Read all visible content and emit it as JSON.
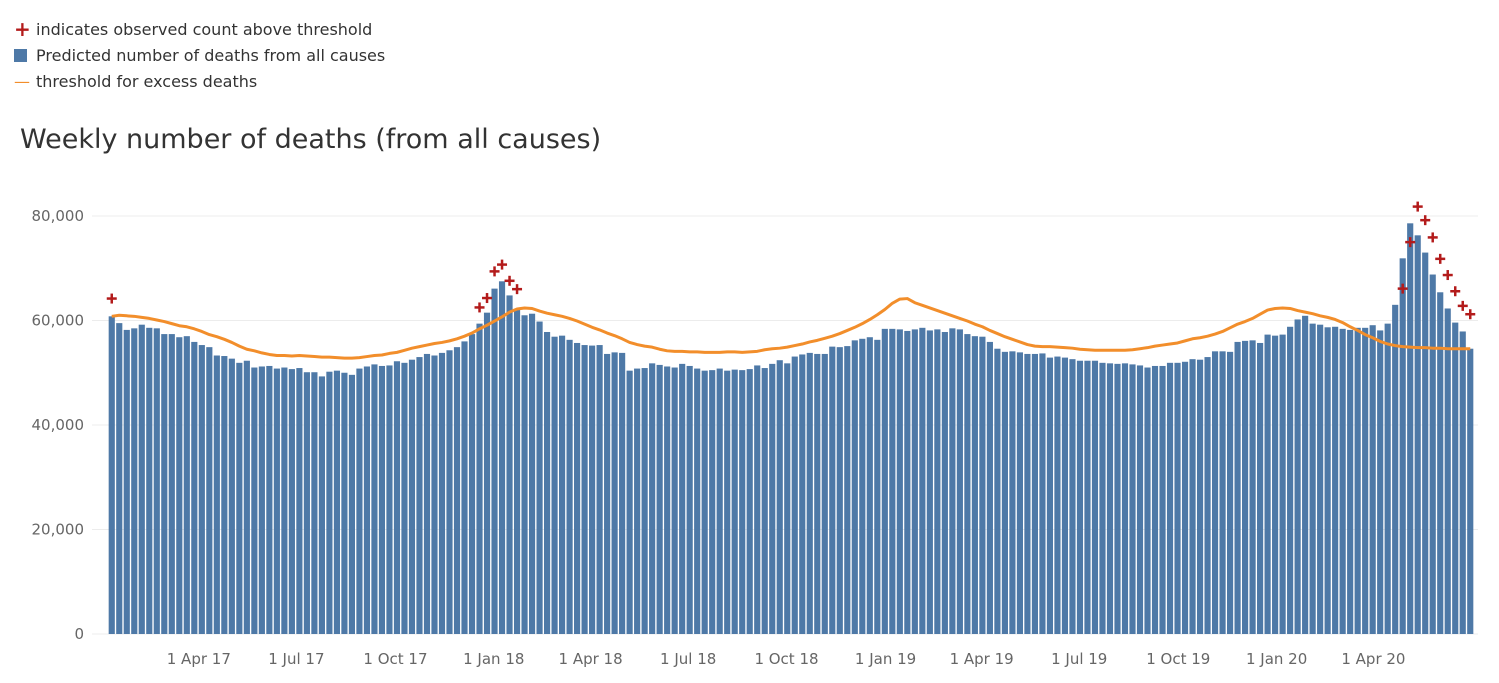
{
  "legend": {
    "marker_label": "indicates observed count above threshold",
    "bar_label": "Predicted number of deaths from all causes",
    "line_label": "threshold for excess deaths",
    "marker_symbol": "+",
    "line_symbol": "—"
  },
  "colors": {
    "bar": "#4e79a7",
    "threshold": "#f28e2b",
    "marker": "#b31b1b",
    "grid": "#ececec",
    "axis_text": "#666666"
  },
  "chart_data": {
    "type": "bar",
    "title": "Weekly number of deaths (from all causes)",
    "xlabel": "",
    "ylabel": "",
    "ylim": [
      0,
      80000
    ],
    "y_ticks": [
      0,
      20000,
      40000,
      60000,
      80000
    ],
    "y_tick_labels": [
      "0",
      "20,000",
      "40,000",
      "60,000",
      "80,000"
    ],
    "x_tick_labels": [
      "1 Apr 17",
      "1 Jul 17",
      "1 Oct 17",
      "1 Jan 18",
      "1 Apr 18",
      "1 Jul 18",
      "1 Oct 18",
      "1 Jan 19",
      "1 Apr 19",
      "1 Jul 19",
      "1 Oct 19",
      "1 Jan 20",
      "1 Apr 20"
    ],
    "x_tick_weeks": [
      12.1,
      25.1,
      38.3,
      51.4,
      64.3,
      77.3,
      90.4,
      103.6,
      116.4,
      129.4,
      142.6,
      155.7,
      168.6
    ],
    "grid": true,
    "legend_position": "top-left",
    "series": [
      {
        "name": "Predicted number of deaths from all causes",
        "values": [
          60800,
          59500,
          58200,
          58500,
          59200,
          58600,
          58500,
          57400,
          57400,
          56800,
          57000,
          55900,
          55300,
          54900,
          53300,
          53200,
          52700,
          51900,
          52300,
          51000,
          51200,
          51300,
          50800,
          51000,
          50700,
          50900,
          50100,
          50100,
          49300,
          50200,
          50400,
          50000,
          49600,
          50800,
          51200,
          51600,
          51300,
          51400,
          52200,
          51900,
          52500,
          53000,
          53600,
          53300,
          53800,
          54300,
          54900,
          56000,
          57400,
          59400,
          61500,
          66100,
          67500,
          64800,
          62100,
          61000,
          61300,
          59800,
          57800,
          56900,
          57100,
          56300,
          55700,
          55300,
          55200,
          55300,
          53600,
          53900,
          53800,
          50400,
          50800,
          50900,
          51800,
          51500,
          51200,
          51000,
          51700,
          51300,
          50800,
          50400,
          50500,
          50800,
          50400,
          50600,
          50500,
          50700,
          51400,
          50900,
          51700,
          52400,
          51800,
          53100,
          53500,
          53800,
          53600,
          53600,
          55000,
          54900,
          55100,
          56200,
          56500,
          56800,
          56300,
          58400,
          58400,
          58300,
          58000,
          58300,
          58600,
          58100,
          58300,
          57800,
          58500,
          58300,
          57400,
          57000,
          56900,
          55900,
          54600,
          54000,
          54100,
          53900,
          53600,
          53600,
          53700,
          52900,
          53100,
          52900,
          52600,
          52300,
          52300,
          52300,
          51900,
          51800,
          51700,
          51800,
          51600,
          51400,
          51000,
          51300,
          51300,
          51900,
          51900,
          52100,
          52600,
          52500,
          53000,
          54100,
          54100,
          54000,
          55900,
          56100,
          56200,
          55700,
          57300,
          57100,
          57300,
          58800,
          60200,
          60900,
          59400,
          59200,
          58700,
          58800,
          58400,
          58200,
          58600,
          58600,
          59100,
          58100,
          59400,
          63000,
          71900,
          78600,
          76300,
          73000,
          68800,
          65400,
          62300,
          59600,
          57900,
          54600
        ]
      },
      {
        "name": "threshold for excess deaths",
        "values": [
          60800,
          61000,
          60900,
          60800,
          60600,
          60400,
          60100,
          59800,
          59400,
          59000,
          58800,
          58400,
          57900,
          57300,
          56900,
          56400,
          55800,
          55100,
          54500,
          54200,
          53800,
          53500,
          53300,
          53300,
          53200,
          53300,
          53200,
          53100,
          53000,
          53000,
          52900,
          52800,
          52800,
          52900,
          53100,
          53300,
          53400,
          53700,
          53900,
          54300,
          54700,
          55000,
          55300,
          55600,
          55800,
          56100,
          56500,
          57000,
          57600,
          58400,
          59100,
          59900,
          60700,
          61600,
          62200,
          62400,
          62300,
          61800,
          61400,
          61100,
          60800,
          60400,
          59900,
          59300,
          58700,
          58200,
          57600,
          57100,
          56500,
          55800,
          55400,
          55100,
          54900,
          54500,
          54200,
          54100,
          54100,
          54000,
          54000,
          53900,
          53900,
          53900,
          54000,
          54000,
          53900,
          54000,
          54100,
          54400,
          54600,
          54700,
          54900,
          55200,
          55500,
          55900,
          56200,
          56600,
          57000,
          57500,
          58100,
          58700,
          59400,
          60200,
          61100,
          62100,
          63300,
          64100,
          64200,
          63400,
          62900,
          62400,
          61900,
          61400,
          60900,
          60400,
          59900,
          59300,
          58800,
          58100,
          57500,
          56900,
          56400,
          55900,
          55400,
          55100,
          55000,
          55000,
          54900,
          54800,
          54700,
          54500,
          54400,
          54300,
          54300,
          54300,
          54300,
          54300,
          54400,
          54600,
          54800,
          55100,
          55300,
          55500,
          55700,
          56100,
          56500,
          56700,
          57000,
          57400,
          57900,
          58600,
          59300,
          59800,
          60400,
          61200,
          62000,
          62300,
          62400,
          62300,
          61900,
          61600,
          61300,
          60900,
          60600,
          60200,
          59600,
          58800,
          58100,
          57300,
          56700,
          56000,
          55500,
          55200,
          55000,
          54900,
          54800,
          54800,
          54700,
          54700,
          54600,
          54600,
          54600,
          54600
        ]
      },
      {
        "name": "indicates observed count above threshold",
        "points": [
          [
            0,
            64200
          ],
          [
            49,
            62500
          ],
          [
            50,
            64300
          ],
          [
            51,
            69400
          ],
          [
            52,
            70700
          ],
          [
            53,
            67600
          ],
          [
            54,
            66000
          ],
          [
            172,
            66100
          ],
          [
            173,
            75000
          ],
          [
            174,
            81800
          ],
          [
            175,
            79200
          ],
          [
            176,
            75900
          ],
          [
            177,
            71800
          ],
          [
            178,
            68700
          ],
          [
            179,
            65600
          ],
          [
            180,
            62800
          ],
          [
            181,
            61200
          ]
        ]
      }
    ]
  }
}
